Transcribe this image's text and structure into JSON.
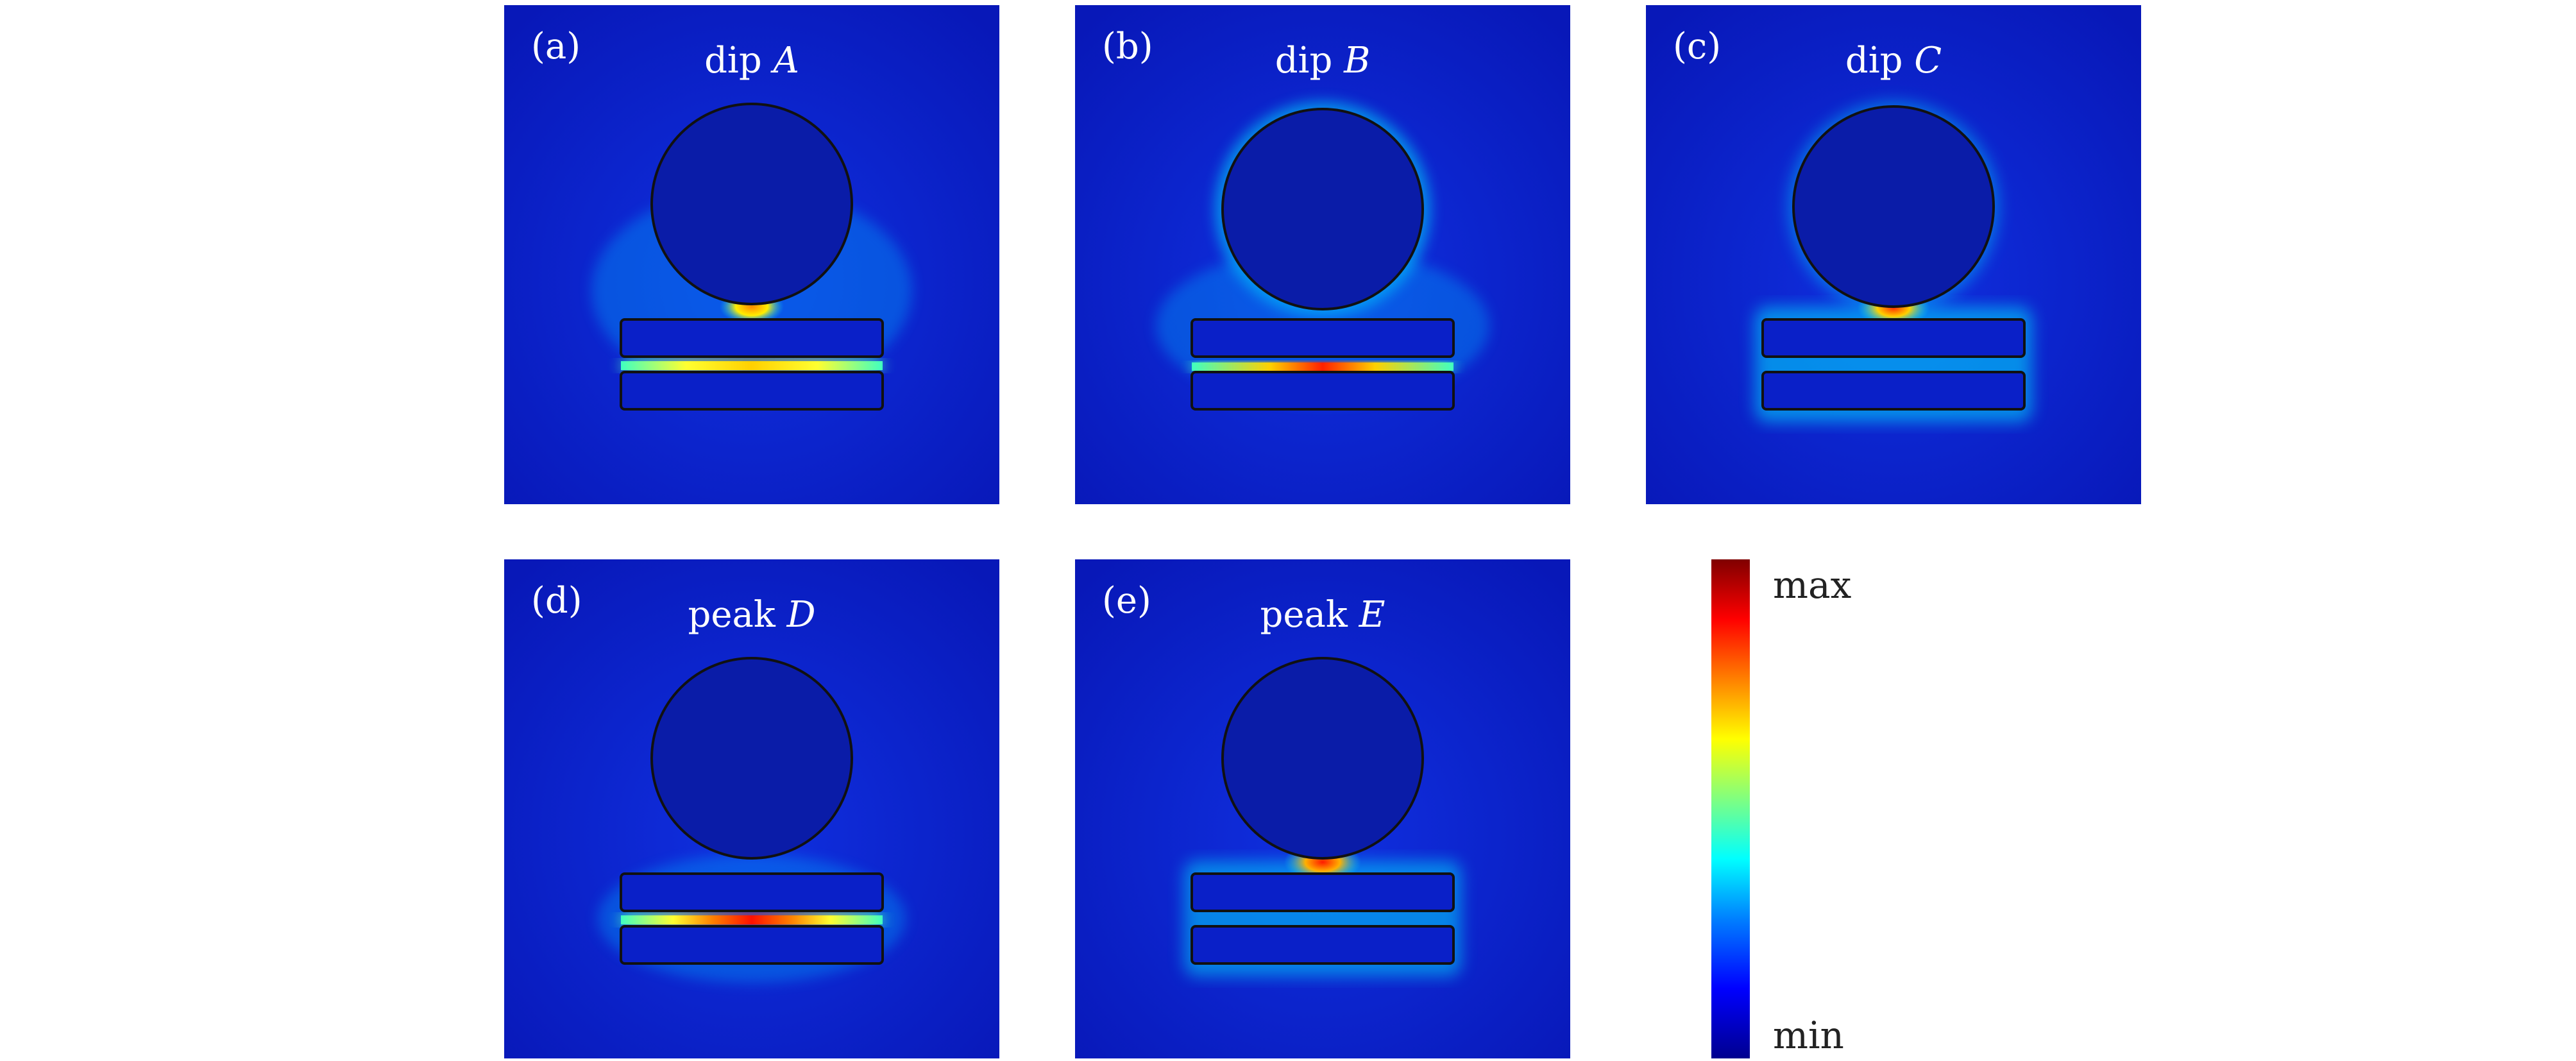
{
  "panels": [
    {
      "label": "(a)",
      "title_prefix": "dip",
      "title_var": "A",
      "hotspot": "gap"
    },
    {
      "label": "(b)",
      "title_prefix": "dip",
      "title_var": "B",
      "hotspot": "gap-strong"
    },
    {
      "label": "(c)",
      "title_prefix": "dip",
      "title_var": "C",
      "hotspot": "top"
    },
    {
      "label": "(d)",
      "title_prefix": "peak",
      "title_var": "D",
      "hotspot": "gap-strong"
    },
    {
      "label": "(e)",
      "title_prefix": "peak",
      "title_var": "E",
      "hotspot": "top"
    }
  ],
  "colorbar": {
    "max_label": "max",
    "min_label": "min"
  },
  "colors": {
    "background": "#0a1fc8",
    "dark": "#07158f",
    "hot": "#ff2a00",
    "warm": "#ffd000",
    "cyan": "#00e5ff"
  }
}
